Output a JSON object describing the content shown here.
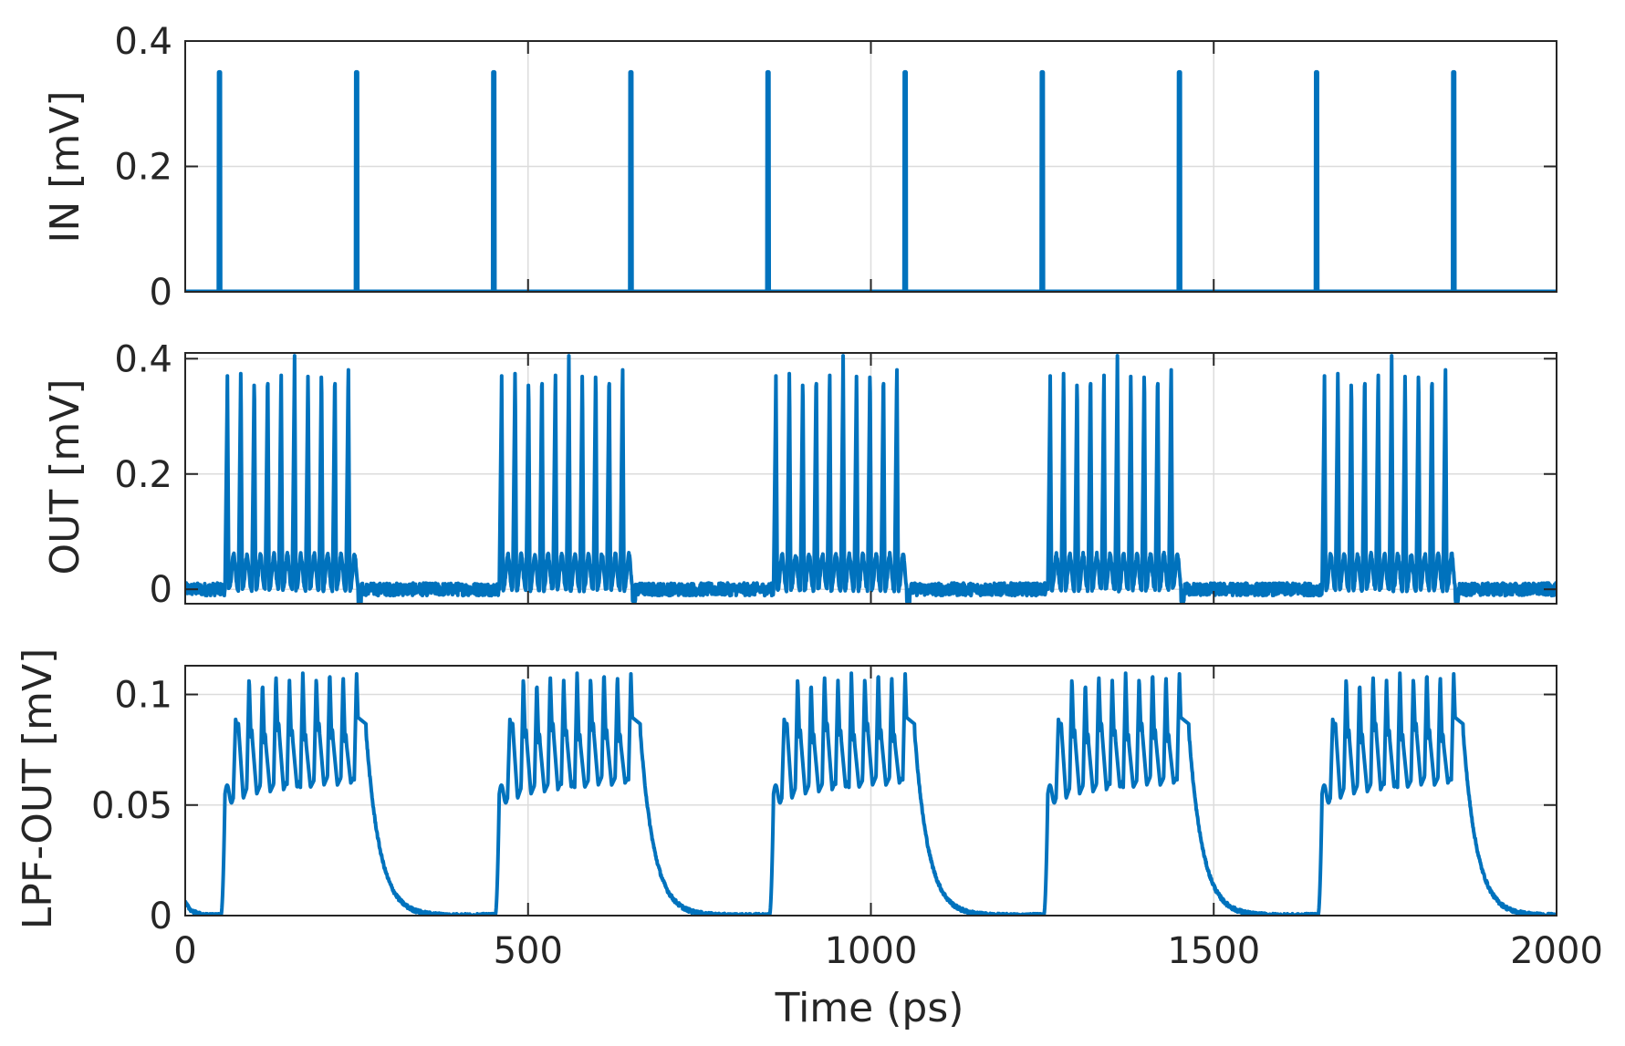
{
  "chart_data": [
    {
      "type": "line",
      "panel": "top",
      "ylabel": "IN [mV]",
      "xlim": [
        0,
        2000
      ],
      "ylim": [
        0,
        0.4
      ],
      "yticks": [
        0,
        0.2,
        0.4
      ],
      "ytick_labels": [
        "0",
        "0.2",
        "0.4"
      ],
      "grid": true,
      "series": [
        {
          "color": "#0072BD",
          "pulse_times": [
            50,
            250,
            450,
            650,
            850,
            1050,
            1250,
            1450,
            1650,
            1850
          ],
          "pulse_amplitude": 0.35,
          "baseline": 0
        }
      ]
    },
    {
      "type": "line",
      "panel": "middle",
      "ylabel": "OUT [mV]",
      "xlim": [
        0,
        2000
      ],
      "ylim": [
        -0.025,
        0.41
      ],
      "yticks": [
        0,
        0.2,
        0.4
      ],
      "ytick_labels": [
        "0",
        "0.2",
        "0.4"
      ],
      "grid": true,
      "series": [
        {
          "color": "#0072BD",
          "burst_starts": [
            58,
            458,
            858,
            1258,
            1658
          ],
          "burst_ends": [
            252,
            652,
            1052,
            1452,
            1852
          ],
          "spikes_per_burst": 10,
          "spike_peaks": [
            0.36,
            0.385,
            0.375,
            0.385,
            0.38,
            0.395,
            0.38,
            0.39,
            0.385,
            0.39
          ],
          "baseline": 0
        }
      ]
    },
    {
      "type": "line",
      "panel": "bottom",
      "ylabel": "LPF-OUT [mV]",
      "xlabel": "Time (ps)",
      "xlim": [
        0,
        2000
      ],
      "ylim": [
        0,
        0.113
      ],
      "xticks": [
        0,
        500,
        1000,
        1500,
        2000
      ],
      "xtick_labels": [
        "0",
        "500",
        "1000",
        "1500",
        "2000"
      ],
      "yticks": [
        0,
        0.05,
        0.1
      ],
      "ytick_labels": [
        "0",
        "0.05",
        "0.1"
      ],
      "grid": true,
      "series": [
        {
          "color": "#0072BD",
          "burst_starts": [
            58,
            458,
            858,
            1258,
            1658
          ],
          "burst_ends": [
            252,
            652,
            1052,
            1452,
            1852
          ],
          "step_level": 0.055,
          "peak_levels": [
            0.089,
            0.108,
            0.106,
            0.109,
            0.107,
            0.11,
            0.108,
            0.111,
            0.109,
            0.11
          ],
          "trough_levels": [
            0.053,
            0.055,
            0.056,
            0.057,
            0.058,
            0.058,
            0.059,
            0.059,
            0.06
          ],
          "mid_levels": [
            0.083,
            0.08,
            0.078
          ],
          "decay_time_constant_ps": 20,
          "baseline": 0
        }
      ]
    }
  ]
}
